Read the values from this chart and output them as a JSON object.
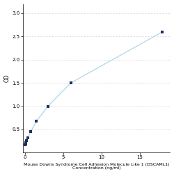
{
  "x": [
    0.0,
    0.047,
    0.094,
    0.188,
    0.375,
    0.75,
    1.5,
    3.0,
    6.0,
    18.0
  ],
  "y": [
    0.17,
    0.19,
    0.22,
    0.26,
    0.32,
    0.46,
    0.68,
    1.0,
    1.5,
    2.6
  ],
  "line_color": "#aacfe4",
  "marker_color": "#1a3060",
  "marker_size": 12,
  "xlabel_line1": "Mouse Downs Syndrome Cell Adhesion Molecule Like 1 (DSCAML1)",
  "xlabel_line2": "Concentration (ng/ml)",
  "ylabel": "OD",
  "xlim": [
    -0.3,
    19
  ],
  "ylim": [
    0,
    3.2
  ],
  "yticks": [
    0.5,
    1.0,
    1.5,
    2.0,
    2.5,
    3.0
  ],
  "xtick_positions": [
    0,
    5,
    10,
    15
  ],
  "xtick_labels": [
    "0",
    "5",
    "10",
    "15"
  ],
  "grid_color": "#d0d0d0",
  "bg_color": "#ffffff",
  "xlabel_fontsize": 4.5,
  "ylabel_fontsize": 5.5,
  "tick_fontsize": 5
}
